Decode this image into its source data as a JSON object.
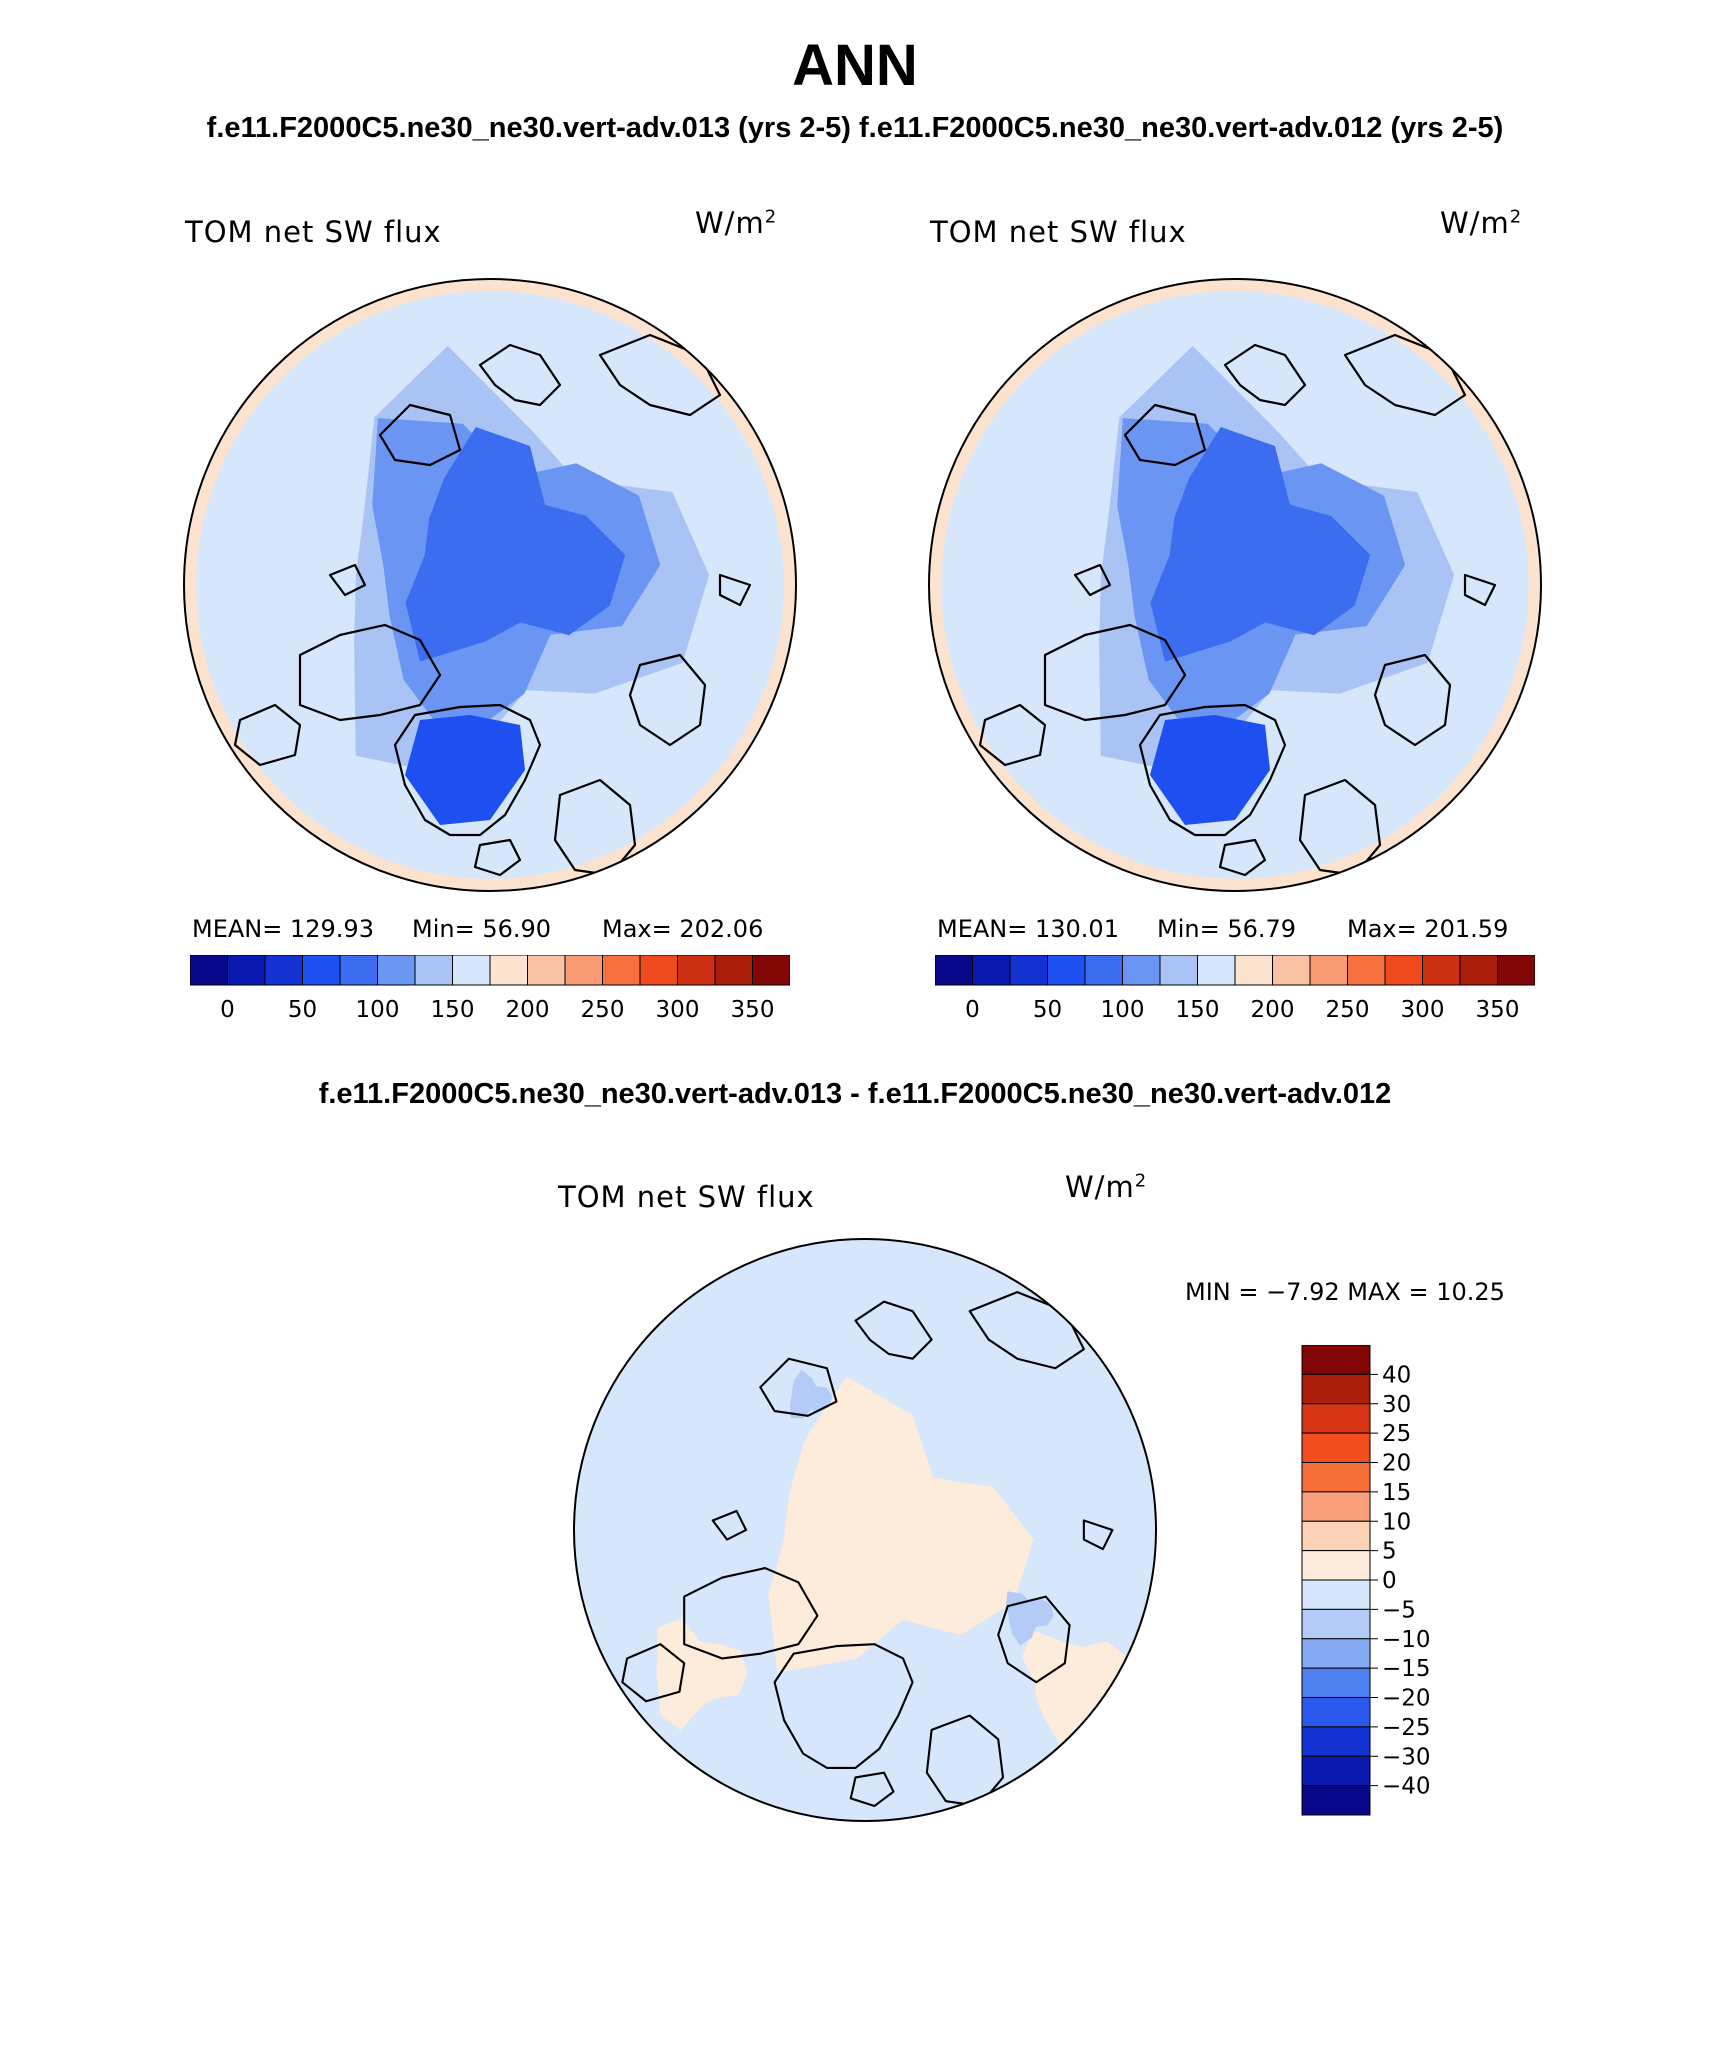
{
  "title": "ANN",
  "subtitle": "f.e11.F2000C5.ne30_ne30.vert-adv.013 (yrs 2-5) f.e11.F2000C5.ne30_ne30.vert-adv.012 (yrs 2-5)",
  "diff_title": "f.e11.F2000C5.ne30_ne30.vert-adv.013 - f.e11.F2000C5.ne30_ne30.vert-adv.012",
  "panels": [
    {
      "label": "TOM net SW flux",
      "units_base": "W/m",
      "units_exp": "2",
      "mean_text": "MEAN= 129.93",
      "min_text": "Min=   56.90",
      "max_text": "Max= 202.06"
    },
    {
      "label": "TOM net SW flux",
      "units_base": "W/m",
      "units_exp": "2",
      "mean_text": "MEAN= 130.01",
      "min_text": "Min=   56.79",
      "max_text": "Max= 201.59"
    }
  ],
  "diff": {
    "label": "TOM net SW flux",
    "units_base": "W/m",
    "units_exp": "2",
    "minmax_text": "MIN =   −7.92 MAX =   10.25"
  },
  "abs_colorbar": {
    "ticks": [
      "0",
      "50",
      "100",
      "150",
      "200",
      "250",
      "300",
      "350"
    ],
    "colors": [
      "#08088a",
      "#0a19b0",
      "#1432d2",
      "#1e4ff0",
      "#3c6cf0",
      "#6b95f2",
      "#a9c3f5",
      "#d6e7fb",
      "#fce3cf",
      "#fac2a4",
      "#f89a74",
      "#f6703f",
      "#ee4a1e",
      "#cc3012",
      "#aa1d0b",
      "#820606"
    ]
  },
  "diff_colorbar": {
    "ticks": [
      "40",
      "30",
      "25",
      "20",
      "15",
      "10",
      "5",
      "0",
      "−5",
      "−10",
      "−15",
      "−20",
      "−25",
      "−30",
      "−40"
    ],
    "colors": [
      "#820606",
      "#aa1d0b",
      "#d83516",
      "#f24d1f",
      "#f66e38",
      "#f9a07d",
      "#fcd3b7",
      "#fdebdc",
      "#d6e7fb",
      "#b3cbf6",
      "#86a9f3",
      "#4f80f0",
      "#2a5aee",
      "#1432d2",
      "#0a19b0",
      "#08088a"
    ]
  },
  "icons": {
    "map_feature": "polar-stereographic-map",
    "coastline": "coastline-outline"
  }
}
